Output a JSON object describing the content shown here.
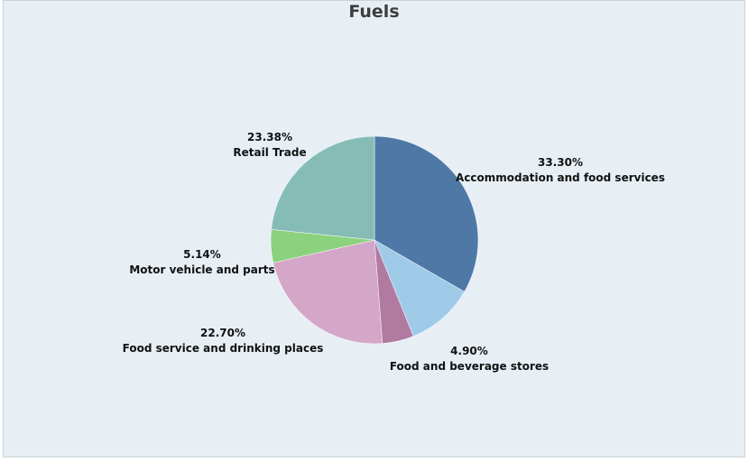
{
  "chart_data": {
    "type": "pie",
    "title": "Fuels",
    "slices": [
      {
        "label": "Accommodation and food services",
        "value": 33.3,
        "value_label": "33.30%",
        "color": "#4e79a7"
      },
      {
        "label": "",
        "value": 10.58,
        "value_label": "",
        "color": "#a0cbe8"
      },
      {
        "label": "Food and beverage stores",
        "value": 4.9,
        "value_label": "4.90%",
        "color": "#b07aa1"
      },
      {
        "label": "Food service and drinking places",
        "value": 22.7,
        "value_label": "22.70%",
        "color": "#d4a6c8"
      },
      {
        "label": "Motor vehicle and parts",
        "value": 5.14,
        "value_label": "5.14%",
        "color": "#8cd17d"
      },
      {
        "label": "Retail Trade",
        "value": 23.38,
        "value_label": "23.38%",
        "color": "#86bcb6"
      }
    ],
    "background": "#e7eff5"
  }
}
